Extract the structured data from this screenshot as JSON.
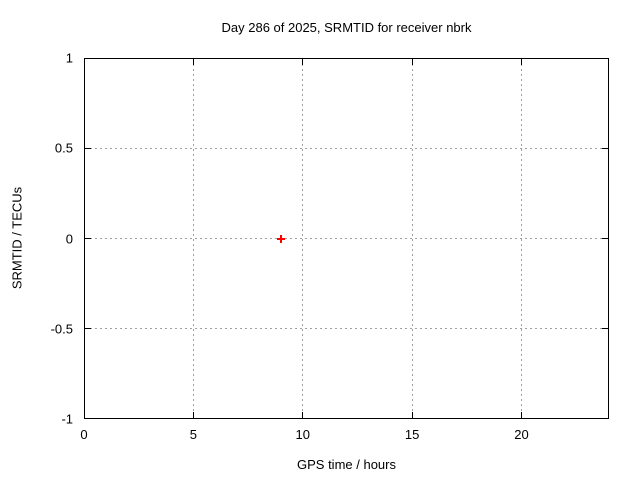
{
  "chart_data": {
    "type": "scatter",
    "title": "Day 286 of 2025, SRMTID for receiver nbrk",
    "xlabel": "GPS time / hours",
    "ylabel": "SRMTID / TECUs",
    "xlim": [
      0,
      24
    ],
    "ylim": [
      -1,
      1
    ],
    "xticks": [
      0,
      5,
      10,
      15,
      20
    ],
    "yticks": [
      -1,
      -0.5,
      0,
      0.5,
      1
    ],
    "grid": true,
    "legend": "none",
    "series": [
      {
        "name": "SRMTID",
        "marker": "plus",
        "color": "#ff0000",
        "points": [
          {
            "x": 9,
            "y": 0
          }
        ]
      }
    ]
  },
  "colors": {
    "background": "#ffffff",
    "axis": "#000000",
    "grid": "#a0a0a0",
    "text": "#000000"
  }
}
